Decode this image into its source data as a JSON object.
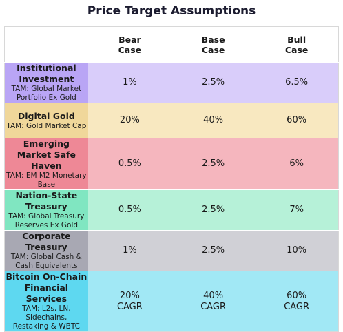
{
  "header": {
    "title": "Price Target Assumptions"
  },
  "table": {
    "columns": [
      "Bear\nCase",
      "Base\nCase",
      "Bull\nCase"
    ],
    "rows": [
      {
        "name": "Institutional Investment",
        "tam": "TAM: Global Market Portfolio Ex Gold",
        "values": [
          "1%",
          "2.5%",
          "6.5%"
        ],
        "label_color": "#b9a5f5",
        "value_color": "#d9cdfa"
      },
      {
        "name": "Digital Gold",
        "tam": "TAM: Gold Market Cap",
        "values": [
          "20%",
          "40%",
          "60%"
        ],
        "label_color": "#f0d79a",
        "value_color": "#f8e8c0"
      },
      {
        "name": "Emerging Market Safe Haven",
        "tam": "TAM: EM M2 Monetary Base",
        "values": [
          "0.5%",
          "2.5%",
          "6%"
        ],
        "label_color": "#ee8896",
        "value_color": "#f5b6be"
      },
      {
        "name": "Nation-State Treasury",
        "tam": "TAM: Global Treasury Reserves Ex Gold",
        "values": [
          "0.5%",
          "2.5%",
          "7%"
        ],
        "label_color": "#80e6c1",
        "value_color": "#b6f1d8"
      },
      {
        "name": "Corporate Treasury",
        "tam": "TAM: Global Cash & Cash Equivalents",
        "values": [
          "1%",
          "2.5%",
          "10%"
        ],
        "label_color": "#a8a8b3",
        "value_color": "#d0d0d6"
      },
      {
        "name": "Bitcoin On-Chain Financial Services",
        "tam": "TAM: L2s, LN, Sidechains,\nRestaking & WBTC",
        "values": [
          "20%\nCAGR",
          "40%\nCAGR",
          "60%\nCAGR"
        ],
        "label_color": "#5ed8f0",
        "value_color": "#a1e8f5"
      }
    ]
  }
}
